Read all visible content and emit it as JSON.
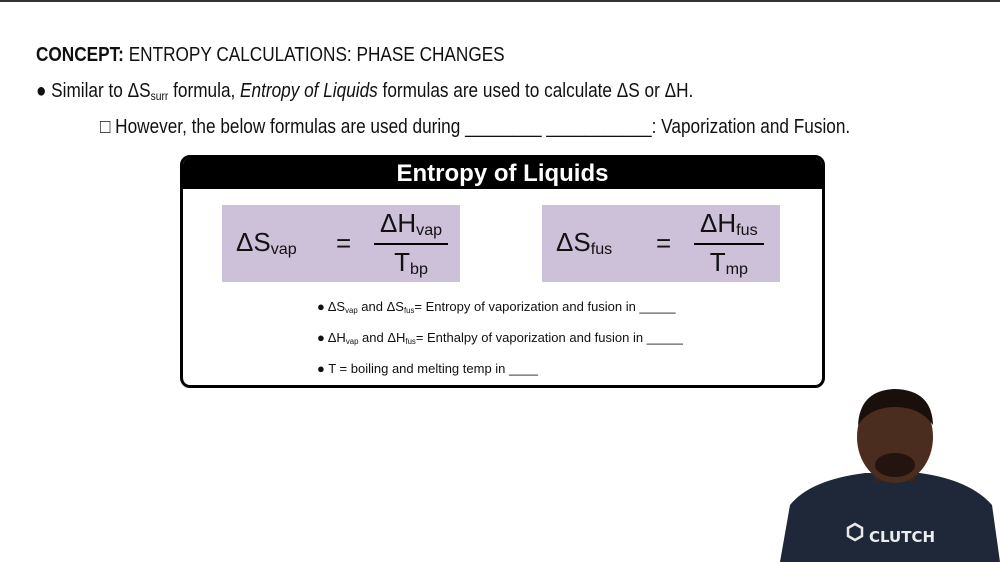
{
  "title": {
    "bold": "CONCEPT:",
    "rest": " ENTROPY CALCULATIONS: PHASE CHANGES"
  },
  "bullet1": {
    "a": "Similar to ΔS",
    "sub": "surr",
    "b": " formula, ",
    "italic": "Entropy of Liquids",
    "c": " formulas are used to calculate ΔS or ΔH."
  },
  "bullet2": {
    "text": "However, the below formulas are used during ________  ___________: Vaporization and Fusion."
  },
  "box": {
    "header": "Entropy of Liquids",
    "formula_vap": {
      "lhs": "ΔS",
      "lhs_sub": "vap",
      "num": "ΔH",
      "num_sub": "vap",
      "den": "T",
      "den_sub": "bp"
    },
    "formula_fus": {
      "lhs": "ΔS",
      "lhs_sub": "fus",
      "num": "ΔH",
      "num_sub": "fus",
      "den": "T",
      "den_sub": "mp"
    },
    "points": [
      {
        "a": "ΔS",
        "s1": "vap",
        "b": " and ΔS",
        "s2": "fus",
        "c": "= Entropy of vaporization and fusion in _____"
      },
      {
        "a": "ΔH",
        "s1": "vap",
        "b": " and ΔH",
        "s2": "fus",
        "c": "= Enthalpy of vaporization and fusion in _____"
      },
      {
        "a": "T = boiling and melting temp in ____"
      }
    ]
  },
  "logo": "CLUTCH",
  "colors": {
    "formula_bg": "#cdc1da",
    "header_bg": "#000000"
  }
}
